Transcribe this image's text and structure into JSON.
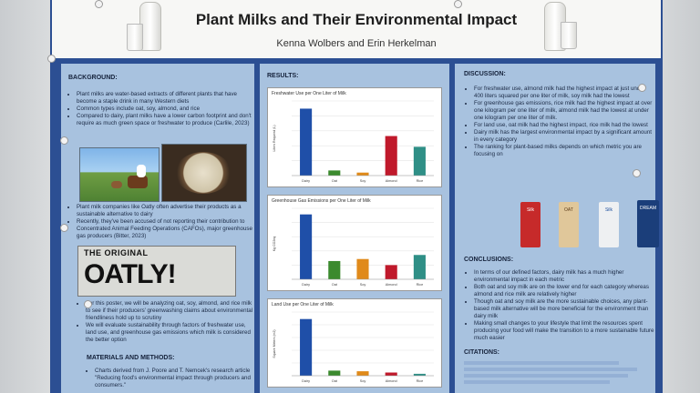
{
  "title": "Plant Milks and Their Environmental Impact",
  "authors": "Kenna Wolbers and Erin Herkelman",
  "background": {
    "heading": "BACKGROUND:",
    "bullets1": [
      "Plant milks are water-based extracts of different plants that have become a staple drink in many Western diets",
      "Common types include oat, soy, almond, and rice",
      "Compared to dairy, plant milks have a lower carbon footprint and don't require as much green space or freshwater to produce (Carlile, 2023)"
    ],
    "bullets2": [
      "Plant milk companies like Oatly often advertise their products as a sustainable alternative to dairy",
      "Recently, they've been accused of not reporting their contribution to Concentrated Animal Feeding Operations (CAFOs), major greenhouse gas producers (Bitter, 2023)"
    ],
    "oatly_top": "THE ORIGINAL",
    "oatly_big": "OATLY!",
    "bullets3": [
      "For this poster, we will be analyzing oat, soy, almond, and rice milk to see if their producers' greenwashing claims about environmental friendliness hold up to scrutiny",
      "We will evaluate sustainability through factors of freshwater use, land use, and greenhouse gas emissions which milk is considered the better option"
    ]
  },
  "methods": {
    "heading": "MATERIALS AND METHODS:",
    "bullets": [
      "Charts derived from J. Poore and T. Nemcek's research article \"Reducing food's environmental impact through producers and consumers.\""
    ]
  },
  "results": {
    "heading": "RESULTS:"
  },
  "chart_data": [
    {
      "type": "bar",
      "title": "Freshwater Use per One Liter of Milk",
      "ylabel": "Liters Required (L)",
      "categories": [
        "Dairy",
        "Oat",
        "Soy",
        "Almond",
        "Rice"
      ],
      "values": [
        628,
        48,
        28,
        371,
        270
      ],
      "ylim": [
        0,
        700
      ],
      "colors": [
        "#1f4fa8",
        "#3b8a2e",
        "#e08a1a",
        "#c0192b",
        "#2f8f86"
      ]
    },
    {
      "type": "bar",
      "title": "Greenhouse Gas Emissions per One Liter of Milk",
      "ylabel": "Kg CO2eq",
      "categories": [
        "Dairy",
        "Oat",
        "Soy",
        "Almond",
        "Rice"
      ],
      "values": [
        3.2,
        0.9,
        1.0,
        0.7,
        1.2
      ],
      "ylim": [
        0,
        3.5
      ],
      "colors": [
        "#1f4fa8",
        "#3b8a2e",
        "#e08a1a",
        "#c0192b",
        "#2f8f86"
      ]
    },
    {
      "type": "bar",
      "title": "Land Use per One Liter of Milk",
      "ylabel": "Square Meters (m2)",
      "categories": [
        "Dairy",
        "Oat",
        "Soy",
        "Almond",
        "Rice"
      ],
      "values": [
        8.9,
        0.8,
        0.7,
        0.5,
        0.3
      ],
      "ylim": [
        0,
        10
      ],
      "colors": [
        "#1f4fa8",
        "#3b8a2e",
        "#e08a1a",
        "#c0192b",
        "#2f8f86"
      ]
    }
  ],
  "discussion": {
    "heading": "DISCUSSION:",
    "bullets": [
      "For freshwater use, almond milk had the highest impact at just under 400 liters squared per one liter of milk, soy milk had the lowest",
      "For greenhouse gas emissions, rice milk had the highest impact at over one kilogram per one liter of milk, almond milk had the lowest at under one kilogram per one liter of milk.",
      "For land use, oat milk had the highest impact, rice milk had the lowest",
      "Dairy milk has the largest environmental impact by a significant amount in every category",
      "The ranking for plant-based milks depends on which metric you are focusing on"
    ],
    "cartons": [
      "Silk",
      "OAT",
      "Silk",
      "DREAM"
    ]
  },
  "conclusions": {
    "heading": "CONCLUSIONS:",
    "bullets": [
      "In terms of our defined factors, dairy milk has a much higher environmental impact in each metric",
      "Both oat and soy milk are on the lower end for each category whereas almond and rice milk are relatively higher",
      "Though oat and soy milk are the more sustainable choices, any plant-based milk alternative will be more beneficial for the environment than dairy milk",
      "Making small changes to your lifestyle that limit the resources spent producing your food will make the transition to a more sustainable future much easier"
    ]
  },
  "citations": {
    "heading": "CITATIONS:"
  }
}
